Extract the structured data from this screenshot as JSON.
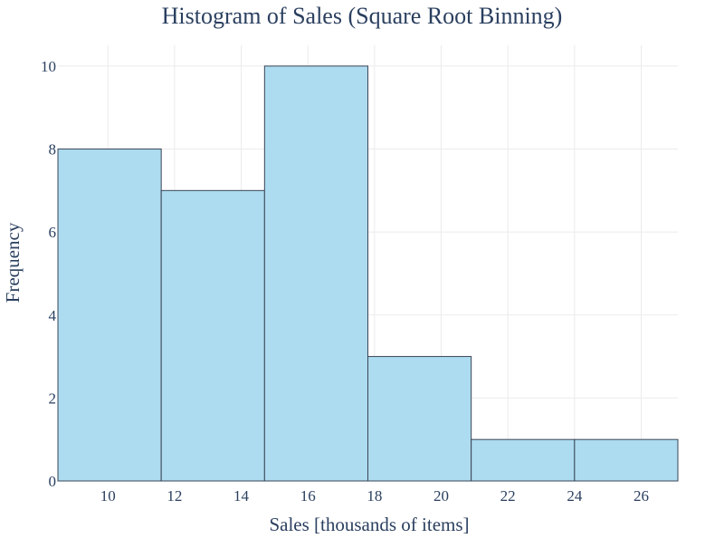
{
  "chart_data": {
    "type": "bar",
    "title": "Histogram of Sales (Square Root Binning)",
    "xlabel": "Sales [thousands of items]",
    "ylabel": "Frequency",
    "bins": [
      {
        "start": 8.5,
        "end": 11.6,
        "count": 8
      },
      {
        "start": 11.6,
        "end": 14.7,
        "count": 7
      },
      {
        "start": 14.7,
        "end": 17.8,
        "count": 10
      },
      {
        "start": 17.8,
        "end": 20.9,
        "count": 3
      },
      {
        "start": 20.9,
        "end": 24.0,
        "count": 1
      },
      {
        "start": 24.0,
        "end": 27.1,
        "count": 1
      }
    ],
    "xlim": [
      8.5,
      27.1
    ],
    "ylim": [
      0,
      10.5
    ],
    "xticks": [
      10,
      12,
      14,
      16,
      18,
      20,
      22,
      24,
      26
    ],
    "yticks": [
      0,
      2,
      4,
      6,
      8,
      10
    ],
    "grid": true,
    "bar_color": "#addbef",
    "bar_outline_color": "#3a4556",
    "text_color": "#2a3f5f"
  }
}
